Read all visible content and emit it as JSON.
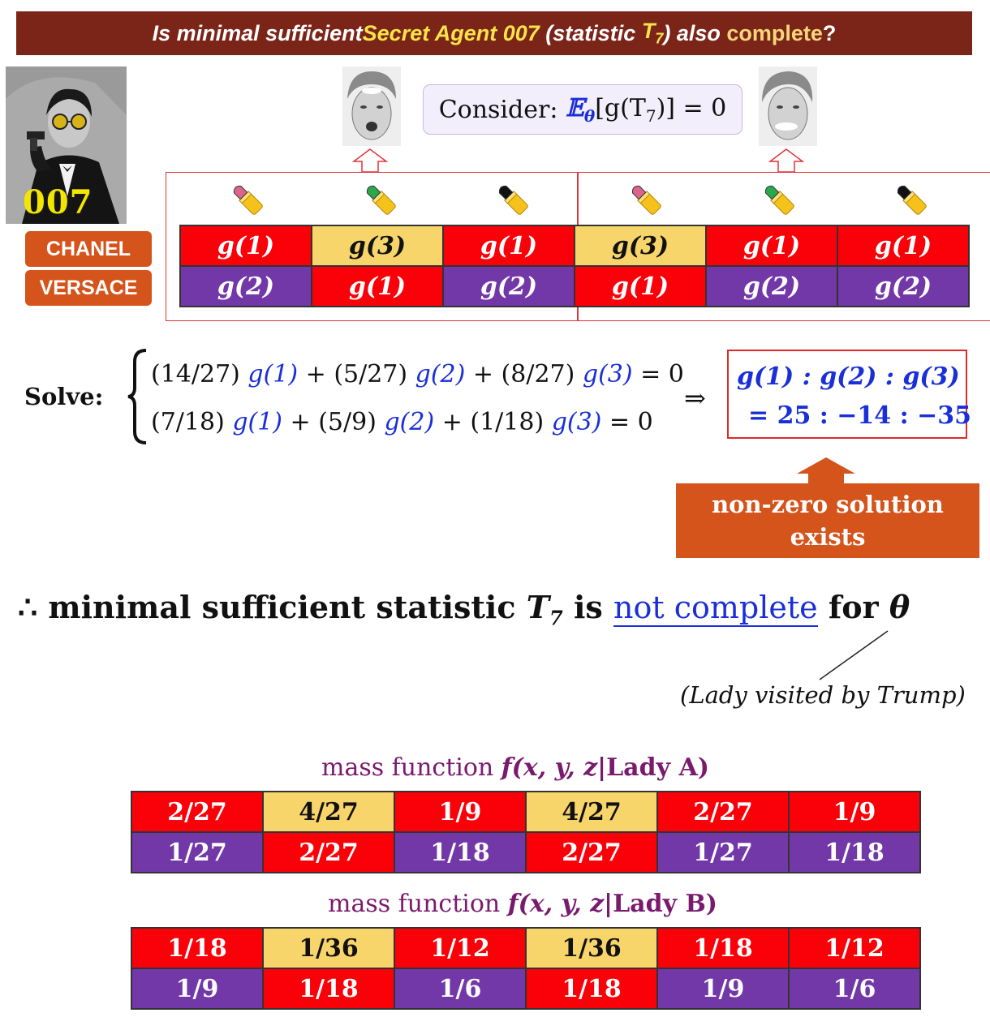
{
  "title": {
    "part1": "Is minimal sufficient ",
    "agent": "Secret Agent 007",
    "part2": " (statistic ",
    "stat": "T",
    "stat_sub": "7",
    "part3": ") also ",
    "complete": "complete",
    "part4": "?"
  },
  "agent_label": "007",
  "brands": {
    "chanel": "CHANEL",
    "versace": "VERSACE"
  },
  "consider": {
    "prefix": "Consider: ",
    "expr": "𝔼",
    "theta": "θ",
    "rest": "[g(T",
    "sub7": "7",
    "tail": ")] = 0"
  },
  "lipstick_colors": [
    "#d9668a",
    "#2aa84a",
    "#111111",
    "#d9668a",
    "#2aa84a",
    "#111111"
  ],
  "g_table": {
    "rows": [
      [
        "g(1)",
        "g(3)",
        "g(1)",
        "g(3)",
        "g(1)",
        "g(1)"
      ],
      [
        "g(2)",
        "g(1)",
        "g(2)",
        "g(1)",
        "g(2)",
        "g(2)"
      ]
    ]
  },
  "solve": {
    "label": "Solve:",
    "eq1": [
      {
        "t": "(14/27) ",
        "b": false
      },
      {
        "t": "g(1)",
        "b": true
      },
      {
        "t": " + (5/27) ",
        "b": false
      },
      {
        "t": "g(2)",
        "b": true
      },
      {
        "t": " + (8/27) ",
        "b": false
      },
      {
        "t": "g(3)",
        "b": true
      },
      {
        "t": " = 0",
        "b": false
      }
    ],
    "eq2": [
      {
        "t": "(7/18) ",
        "b": false
      },
      {
        "t": "g(1)",
        "b": true
      },
      {
        "t": " + (5/9) ",
        "b": false
      },
      {
        "t": "g(2)",
        "b": true
      },
      {
        "t": " + (1/18) ",
        "b": false
      },
      {
        "t": "g(3)",
        "b": true
      },
      {
        "t": " = 0",
        "b": false
      }
    ],
    "implies": "⇒",
    "solution_line1": "g(1) : g(2) : g(3)",
    "solution_line2": "= 25 : −14 : −35",
    "nonzero_line1": "non-zero solution",
    "nonzero_line2": "exists"
  },
  "conclusion": {
    "therefore": "∴ ",
    "text1": "minimal sufficient statistic ",
    "stat": "T",
    "sub": "7",
    "text2": " is ",
    "not_complete": "not complete",
    "text3": " for ",
    "theta": "θ",
    "note": "(Lady visited by Trump)"
  },
  "mass_a": {
    "title_prefix": "mass function ",
    "title_f": "f(x, y, z|",
    "title_lady": "Lady A)",
    "rows": [
      [
        "2/27",
        "4/27",
        "1/9",
        "4/27",
        "2/27",
        "1/9"
      ],
      [
        "1/27",
        "2/27",
        "1/18",
        "2/27",
        "1/27",
        "1/18"
      ]
    ]
  },
  "mass_b": {
    "title_prefix": "mass function ",
    "title_f": "f(x, y, z|",
    "title_lady": "Lady B)",
    "rows": [
      [
        "1/18",
        "1/36",
        "1/12",
        "1/36",
        "1/18",
        "1/12"
      ],
      [
        "1/9",
        "1/18",
        "1/6",
        "1/18",
        "1/9",
        "1/6"
      ]
    ]
  },
  "cell_colors": {
    "row1": [
      "red",
      "yel",
      "red",
      "yel",
      "red",
      "red"
    ],
    "row2": [
      "pur",
      "red",
      "pur",
      "red",
      "pur",
      "pur"
    ]
  }
}
